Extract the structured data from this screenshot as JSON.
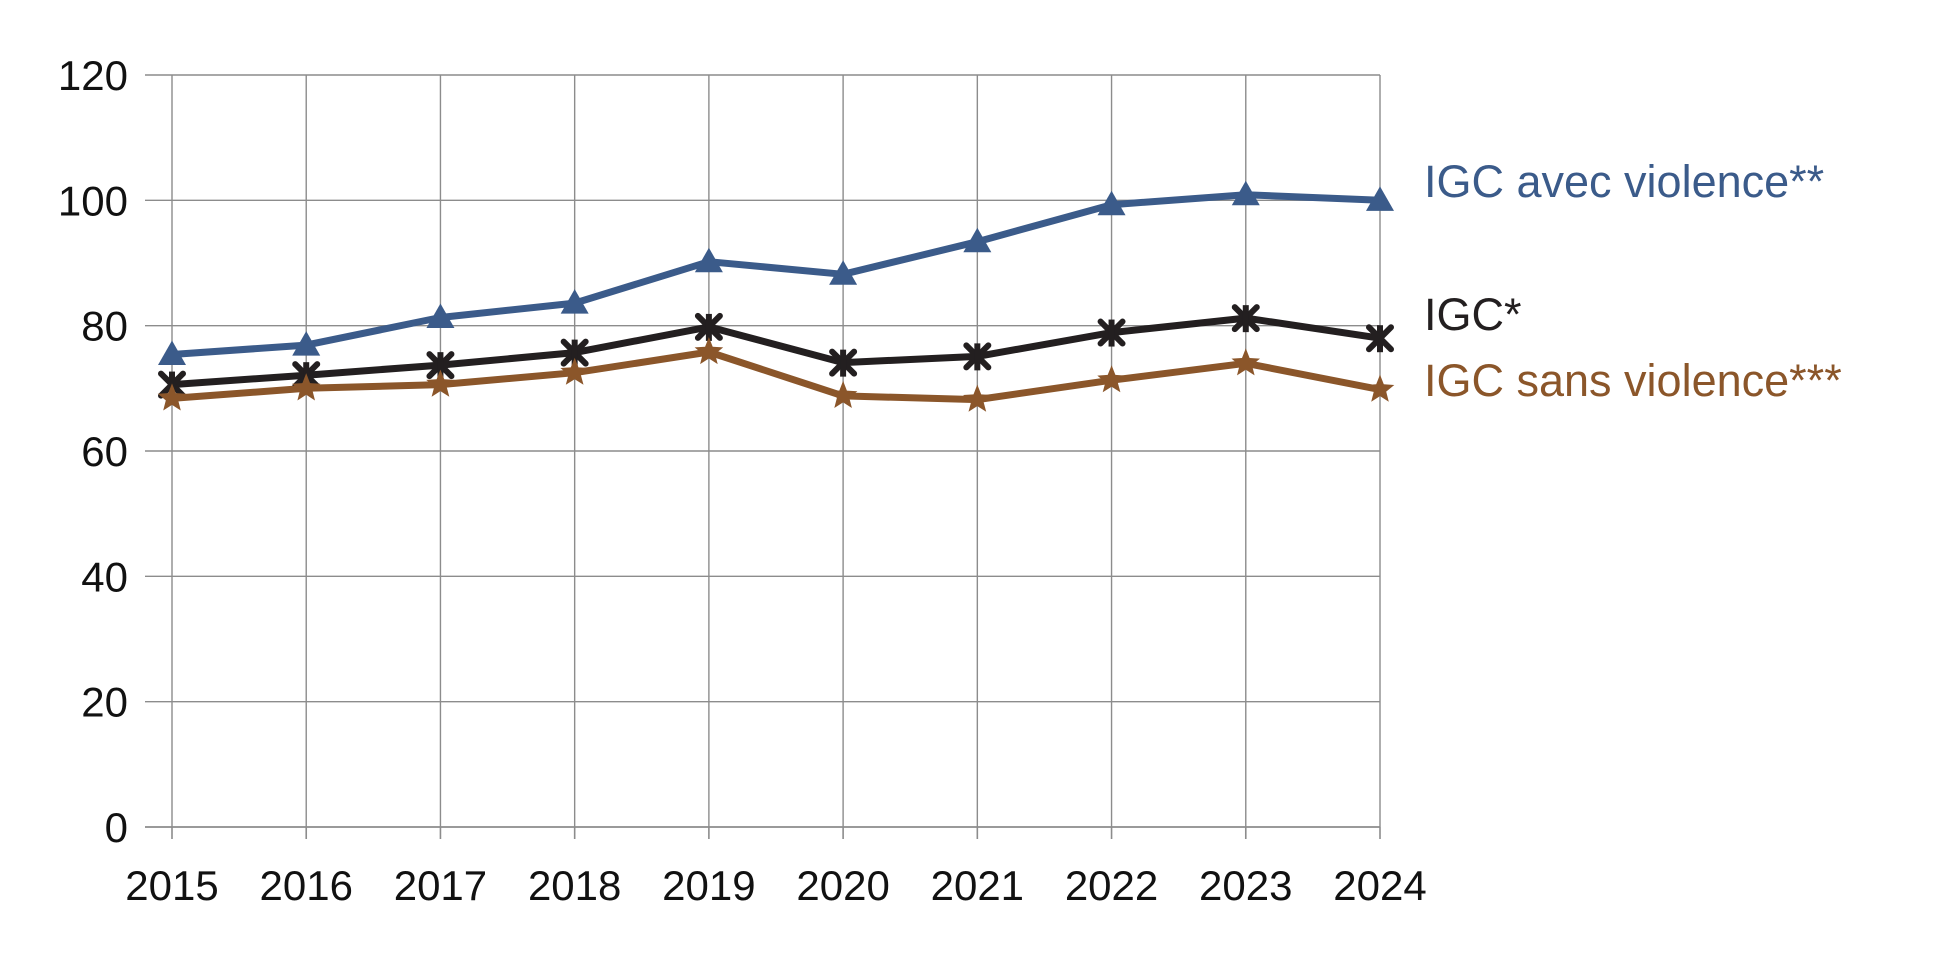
{
  "chart_data": {
    "type": "line",
    "title": "",
    "xlabel": "",
    "ylabel": "",
    "x": [
      "2015",
      "2016",
      "2017",
      "2018",
      "2019",
      "2020",
      "2021",
      "2022",
      "2023",
      "2024"
    ],
    "ylim": [
      0,
      120
    ],
    "yticks": [
      0,
      20,
      40,
      60,
      80,
      100,
      120
    ],
    "grid": true,
    "legend": "inline labels at right end of each line",
    "series": [
      {
        "name": "IGC avec violence**",
        "color": "#3b5b8a",
        "marker": "triangle",
        "values": [
          75.4,
          76.9,
          81.3,
          83.6,
          90.2,
          88.2,
          93.4,
          99.3,
          100.9,
          100.0
        ]
      },
      {
        "name": "IGC*",
        "color": "#231f20",
        "marker": "plus-cross",
        "values": [
          70.6,
          72.1,
          73.7,
          75.7,
          79.8,
          74.1,
          75.1,
          78.9,
          81.2,
          78.0
        ]
      },
      {
        "name": "IGC sans violence***",
        "color": "#8b562a",
        "marker": "star",
        "values": [
          68.4,
          70.0,
          70.6,
          72.5,
          75.8,
          68.8,
          68.2,
          71.3,
          74.0,
          69.8
        ]
      }
    ]
  }
}
